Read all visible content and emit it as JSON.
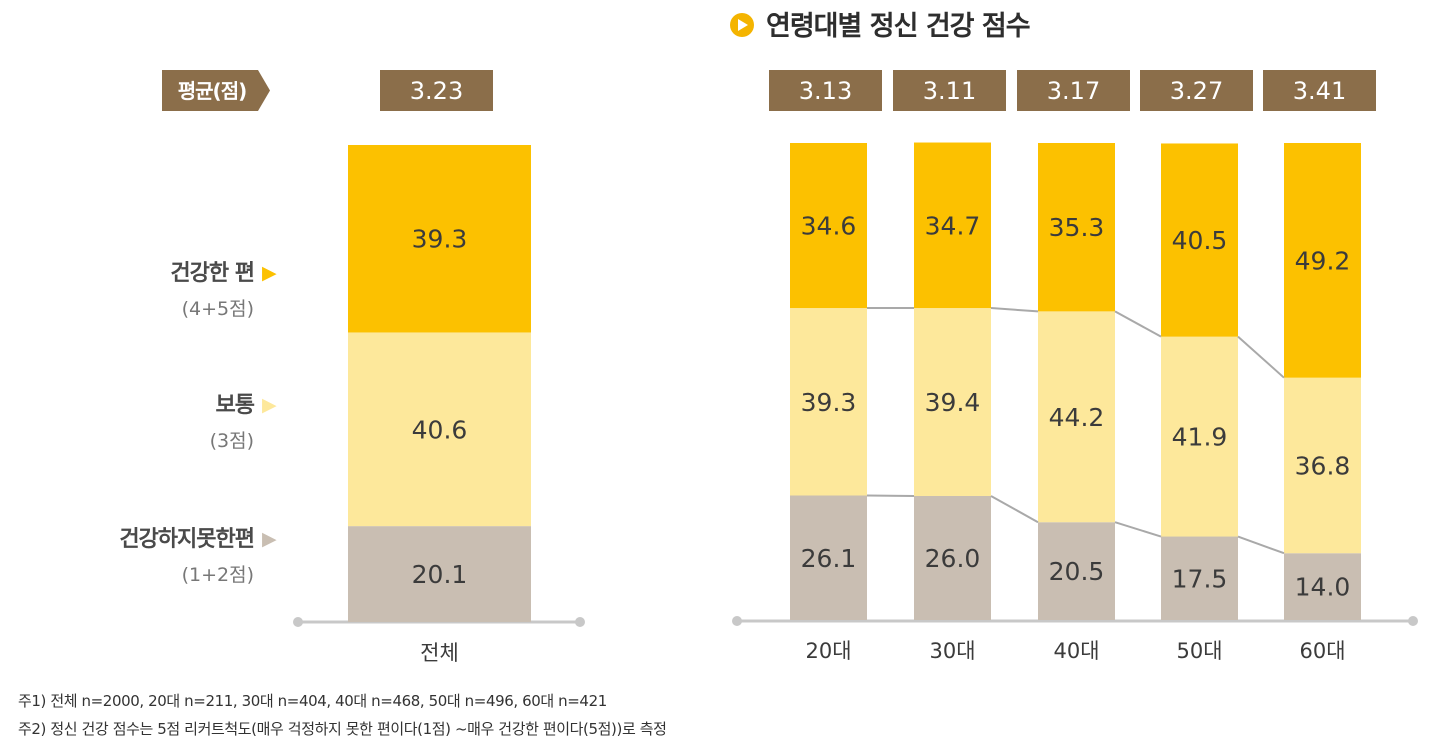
{
  "colors": {
    "healthy": "#FCC100",
    "normal": "#FDE89B",
    "unhealthy": "#C9BEB2",
    "badge": "#8B6E4A",
    "axis": "#C8C8C8",
    "connector": "#A9A9A9",
    "title_icon": "#F4B400"
  },
  "chart_data": [
    {
      "type": "bar",
      "stacked": true,
      "title": "",
      "avg_label": "평균(점)",
      "categories": [
        "전체"
      ],
      "averages": [
        "3.23"
      ],
      "series": [
        {
          "name": "건강하지못한편",
          "values": [
            20.1
          ]
        },
        {
          "name": "보통",
          "values": [
            40.6
          ]
        },
        {
          "name": "건강한 편",
          "values": [
            39.3
          ]
        }
      ],
      "value_labels": [
        [
          "20.1"
        ],
        [
          "40.6"
        ],
        [
          "39.3"
        ]
      ],
      "ylim": [
        0,
        100
      ],
      "legend": [
        {
          "label": "건강한 편",
          "sub": "(4+5점)",
          "arrow": "▶"
        },
        {
          "label": "보통",
          "sub": "(3점)",
          "arrow": "▶"
        },
        {
          "label": "건강하지못한편",
          "sub": "(1+2점)",
          "arrow": "▶"
        }
      ]
    },
    {
      "type": "bar",
      "stacked": true,
      "title": "연령대별 정신 건강 점수",
      "categories": [
        "20대",
        "30대",
        "40대",
        "50대",
        "60대"
      ],
      "averages": [
        "3.13",
        "3.11",
        "3.17",
        "3.27",
        "3.41"
      ],
      "series": [
        {
          "name": "건강하지못한편",
          "values": [
            26.1,
            26.0,
            20.5,
            17.5,
            14.0
          ]
        },
        {
          "name": "보통",
          "values": [
            39.3,
            39.4,
            44.2,
            41.9,
            36.8
          ]
        },
        {
          "name": "건강한 편",
          "values": [
            34.6,
            34.7,
            35.3,
            40.5,
            49.2
          ]
        }
      ],
      "value_labels": [
        [
          "26.1",
          "26.0",
          "20.5",
          "17.5",
          "14.0"
        ],
        [
          "39.3",
          "39.4",
          "44.2",
          "41.9",
          "36.8"
        ],
        [
          "34.6",
          "34.7",
          "35.3",
          "40.5",
          "49.2"
        ]
      ],
      "ylim": [
        0,
        100
      ]
    }
  ],
  "footnotes": [
    "주1) 전체 n=2000, 20대 n=211, 30대 n=404, 40대 n=468, 50대 n=496, 60대 n=421",
    "주2) 정신 건강 점수는 5점 리커트척도(매우 걱정하지 못한 편이다(1점) ~매우 건강한 편이다(5점))로 측정"
  ]
}
